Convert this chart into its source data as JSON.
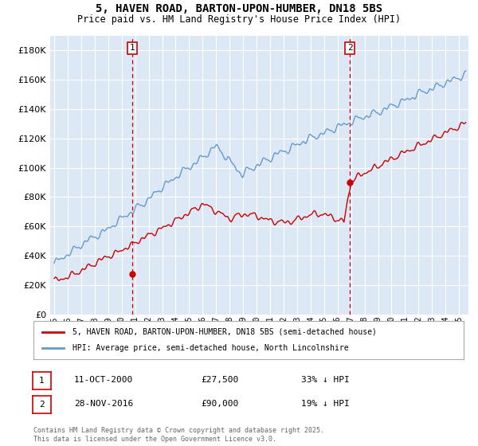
{
  "title_line1": "5, HAVEN ROAD, BARTON-UPON-HUMBER, DN18 5BS",
  "title_line2": "Price paid vs. HM Land Registry's House Price Index (HPI)",
  "legend_label_red": "5, HAVEN ROAD, BARTON-UPON-HUMBER, DN18 5BS (semi-detached house)",
  "legend_label_blue": "HPI: Average price, semi-detached house, North Lincolnshire",
  "annotation1_date": "11-OCT-2000",
  "annotation1_price": "£27,500",
  "annotation1_hpi": "33% ↓ HPI",
  "annotation2_date": "28-NOV-2016",
  "annotation2_price": "£90,000",
  "annotation2_hpi": "19% ↓ HPI",
  "footnote": "Contains HM Land Registry data © Crown copyright and database right 2025.\nThis data is licensed under the Open Government Licence v3.0.",
  "ylim": [
    0,
    190000
  ],
  "yticks": [
    0,
    20000,
    40000,
    60000,
    80000,
    100000,
    120000,
    140000,
    160000,
    180000
  ],
  "color_red": "#cc0000",
  "color_blue": "#6699cc",
  "bg_color": "#dce8f5",
  "purchase1_year": 2000.79,
  "purchase1_price": 27500,
  "purchase2_year": 2016.91,
  "purchase2_price": 90000
}
